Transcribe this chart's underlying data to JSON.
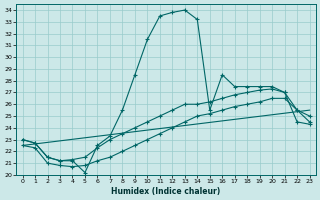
{
  "xlabel": "Humidex (Indice chaleur)",
  "bg_color": "#cce8e8",
  "grid_color": "#99cccc",
  "line_color": "#006666",
  "xlim": [
    -0.5,
    23.5
  ],
  "ylim": [
    20,
    34.5
  ],
  "xticks": [
    0,
    1,
    2,
    3,
    4,
    5,
    6,
    7,
    8,
    9,
    10,
    11,
    12,
    13,
    14,
    15,
    16,
    17,
    18,
    19,
    20,
    21,
    22,
    23
  ],
  "yticks": [
    20,
    21,
    22,
    23,
    24,
    25,
    26,
    27,
    28,
    29,
    30,
    31,
    32,
    33,
    34
  ],
  "line1_x": [
    0,
    1,
    2,
    3,
    4,
    5,
    6,
    7,
    8,
    9,
    10,
    11,
    12,
    13,
    14,
    15,
    16,
    17,
    18,
    19,
    20,
    21,
    22,
    23
  ],
  "line1_y": [
    23.0,
    22.7,
    21.5,
    21.2,
    21.2,
    20.2,
    22.5,
    23.3,
    25.5,
    28.5,
    31.5,
    33.5,
    33.8,
    34.0,
    33.2,
    25.5,
    28.5,
    27.5,
    27.5,
    27.5,
    27.5,
    27.0,
    24.5,
    24.3
  ],
  "line2_x": [
    0,
    1,
    2,
    3,
    4,
    5,
    6,
    7,
    8,
    9,
    10,
    11,
    12,
    13,
    14,
    15,
    16,
    17,
    18,
    19,
    20,
    21,
    22,
    23
  ],
  "line2_y": [
    23.0,
    22.7,
    21.5,
    21.2,
    21.3,
    21.5,
    22.3,
    23.0,
    23.5,
    24.0,
    24.5,
    25.0,
    25.5,
    26.0,
    26.0,
    26.2,
    26.5,
    26.8,
    27.0,
    27.2,
    27.3,
    27.0,
    25.5,
    24.5
  ],
  "line3_x": [
    0,
    1,
    2,
    3,
    4,
    5,
    6,
    7,
    8,
    9,
    10,
    11,
    12,
    13,
    14,
    15,
    16,
    17,
    18,
    19,
    20,
    21,
    22,
    23
  ],
  "line3_y": [
    22.5,
    22.3,
    21.0,
    20.8,
    20.7,
    20.8,
    21.2,
    21.5,
    22.0,
    22.5,
    23.0,
    23.5,
    24.0,
    24.5,
    25.0,
    25.2,
    25.5,
    25.8,
    26.0,
    26.2,
    26.5,
    26.5,
    25.5,
    25.0
  ],
  "line4_x": [
    0,
    23
  ],
  "line4_y": [
    22.5,
    25.5
  ]
}
